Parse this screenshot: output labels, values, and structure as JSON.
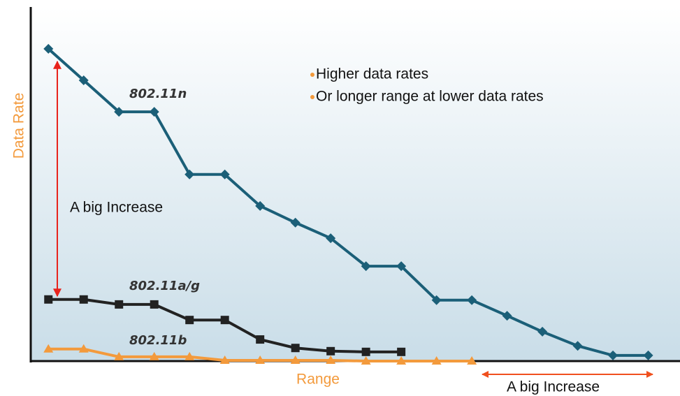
{
  "chart_data": {
    "type": "line",
    "y_label": "Data Rate",
    "x_label": "Range",
    "bullets": [
      "Higher data rates",
      "Or longer range at lower data rates"
    ],
    "annotations": [
      "A big Increase",
      "A big Increase"
    ],
    "xlim": [
      0.5,
      18.9
    ],
    "ylim": [
      0,
      100
    ],
    "series": [
      {
        "name": "802.11n",
        "color": "#1b5f78",
        "marker": "diamond",
        "x": [
          1,
          2,
          3,
          4,
          5,
          6,
          7,
          8,
          9,
          10,
          11,
          12,
          13,
          14,
          15,
          16,
          17,
          18
        ],
        "values": [
          88.2,
          79.3,
          70.4,
          70.4,
          52.7,
          52.7,
          43.8,
          39.1,
          34.7,
          26.8,
          26.8,
          17.2,
          17.2,
          12.8,
          8.3,
          4.3,
          1.6,
          1.6
        ]
      },
      {
        "name": "802.11a/g",
        "color": "#222222",
        "marker": "square",
        "x": [
          1,
          2,
          3,
          4,
          5,
          6,
          7,
          8,
          9,
          10,
          11
        ],
        "values": [
          17.4,
          17.4,
          16.0,
          16.0,
          11.6,
          11.6,
          6.1,
          3.7,
          2.8,
          2.6,
          2.6
        ]
      },
      {
        "name": "802.11b",
        "color": "#f39a3c",
        "marker": "triangle",
        "x": [
          1,
          2,
          3,
          4,
          5,
          6,
          7,
          8,
          9,
          10,
          11,
          12,
          13
        ],
        "values": [
          3.4,
          3.4,
          1.2,
          1.2,
          1.2,
          0.2,
          0.2,
          0.2,
          0.2,
          0,
          0,
          0,
          0
        ]
      }
    ]
  }
}
